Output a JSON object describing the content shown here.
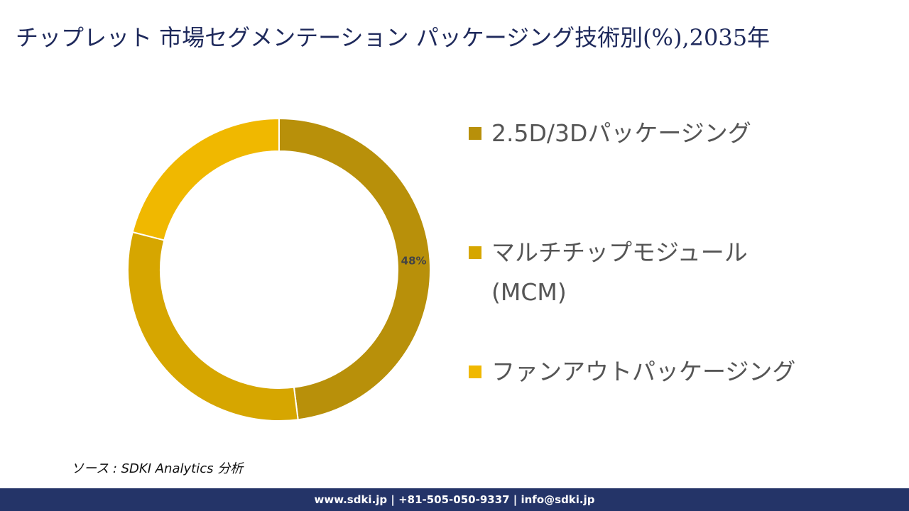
{
  "chart_data": {
    "type": "donut",
    "title": "チップレット 市場セグメンテーション パッケージング技術別(%),2035年",
    "categories": [
      "2.5D/3Dパッケージング",
      "マルチチップモジュール (MCM)",
      "ファンアウトパッケージング"
    ],
    "values": [
      48,
      31,
      21
    ],
    "value_labels": [
      "48%",
      null,
      null
    ],
    "colors": [
      "#b8900a",
      "#d6a600",
      "#f0b800"
    ]
  },
  "source": "ソース : SDKI Analytics 分析",
  "footer": "www.sdki.jp | +81-505-050-9337 | info@sdki.jp"
}
